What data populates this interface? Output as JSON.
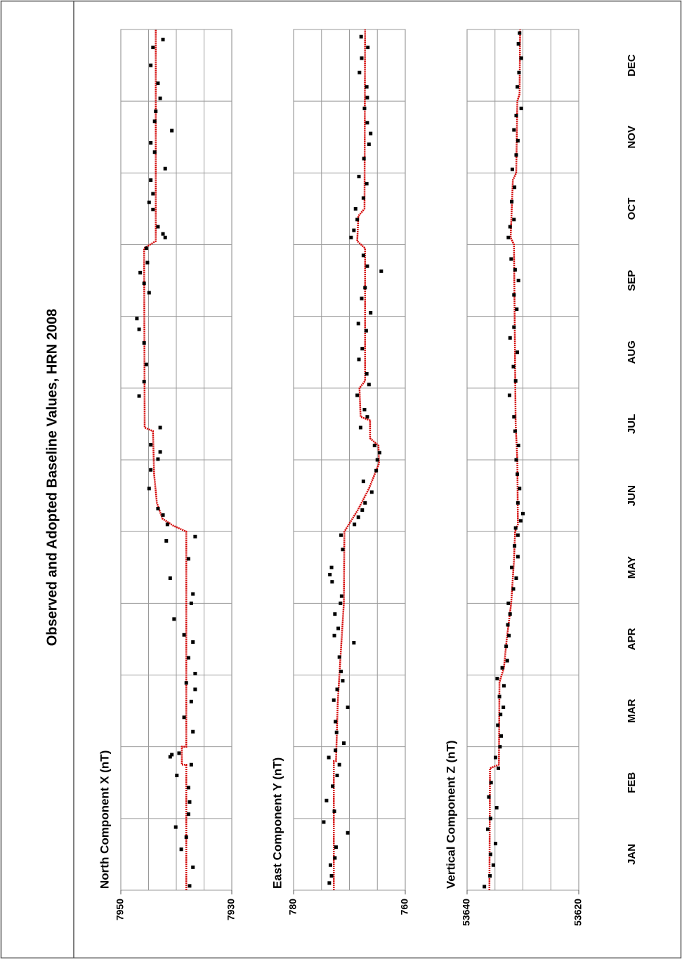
{
  "title": "Observed and Adopted Baseline Values, HRN 2008",
  "chart_data": [
    {
      "type": "scatter",
      "label": "North Component X (nT)",
      "xlim": [
        0,
        12
      ],
      "xgrid": [
        0,
        1,
        2,
        3,
        4,
        5,
        6,
        7,
        8,
        9,
        10,
        11,
        12
      ],
      "ylim": [
        7950,
        7930
      ],
      "yticks": [
        7950,
        7930
      ],
      "ygrid": [
        7945,
        7940,
        7935
      ],
      "series": [
        {
          "style": "line",
          "color": "#d40000",
          "x": [
            0,
            1.75,
            1.75,
            2.0,
            2.0,
            5.0,
            5.08,
            5.18,
            5.4,
            5.8,
            6.4,
            6.45,
            8.95,
            9.05,
            12
          ],
          "values": [
            7938.2,
            7938.2,
            7939.0,
            7939.0,
            7938.2,
            7938.2,
            7940.5,
            7942.5,
            7943.5,
            7944.0,
            7944.2,
            7945.7,
            7945.8,
            7943.7,
            7943.7
          ]
        },
        {
          "style": "points",
          "color": "#000000",
          "x": [
            0.06,
            0.32,
            0.57,
            0.74,
            0.88,
            1.06,
            1.23,
            1.43,
            1.6,
            1.75,
            1.86,
            1.89,
            1.91,
            2.21,
            2.41,
            2.63,
            2.8,
            2.89,
            3.02,
            3.24,
            3.46,
            3.56,
            3.78,
            4.0,
            4.13,
            4.35,
            4.62,
            4.87,
            4.93,
            5.1,
            5.23,
            5.32,
            5.6,
            5.86,
            6.01,
            6.11,
            6.21,
            6.45,
            6.89,
            7.09,
            7.33,
            7.63,
            7.82,
            7.97,
            8.33,
            8.46,
            8.61,
            8.75,
            8.95,
            9.1,
            9.15,
            9.25,
            9.49,
            9.59,
            9.71,
            9.9,
            10.06,
            10.29,
            10.42,
            10.59,
            10.72,
            10.86,
            11.04,
            11.25,
            11.5,
            11.75,
            11.86
          ],
          "values": [
            7937.6,
            7937.0,
            7939.1,
            7938.2,
            7940.1,
            7937.8,
            7937.6,
            7937.8,
            7939.9,
            7937.3,
            7941.1,
            7940.8,
            7939.5,
            7937.0,
            7938.6,
            7937.3,
            7936.6,
            7938.2,
            7936.6,
            7937.8,
            7937.0,
            7938.6,
            7940.4,
            7937.3,
            7937.0,
            7941.1,
            7937.8,
            7941.8,
            7936.6,
            7941.6,
            7942.4,
            7943.3,
            7944.9,
            7944.6,
            7943.3,
            7942.9,
            7944.6,
            7942.9,
            7946.7,
            7945.8,
            7945.4,
            7945.8,
            7946.7,
            7947.1,
            7944.9,
            7945.8,
            7946.5,
            7945.2,
            7945.4,
            7942.0,
            7942.4,
            7943.3,
            7944.2,
            7944.9,
            7944.2,
            7944.6,
            7942.0,
            7943.9,
            7944.6,
            7940.8,
            7943.9,
            7943.7,
            7942.9,
            7943.3,
            7944.6,
            7944.2,
            7942.4
          ]
        }
      ]
    },
    {
      "type": "scatter",
      "label": "East Component Y (nT)",
      "xlim": [
        0,
        12
      ],
      "xgrid": [
        0,
        1,
        2,
        3,
        4,
        5,
        6,
        7,
        8,
        9,
        10,
        11,
        12
      ],
      "ylim": [
        780,
        760
      ],
      "yticks": [
        780,
        760
      ],
      "ygrid": [
        775,
        770,
        765
      ],
      "series": [
        {
          "style": "line",
          "color": "#d40000",
          "x": [
            0,
            1.8,
            1.8,
            2.6,
            3.0,
            3.5,
            4.0,
            5.0,
            5.3,
            5.6,
            5.95,
            6.2,
            6.3,
            6.55,
            6.6,
            7.0,
            7.1,
            8.95,
            9.05,
            9.4,
            9.5,
            12
          ],
          "values": [
            772.8,
            772.8,
            772.4,
            772.1,
            771.8,
            771.4,
            771.0,
            770.9,
            768.5,
            766.5,
            764.7,
            764.8,
            766.3,
            766.3,
            768.0,
            768.2,
            767.2,
            767.2,
            768.6,
            768.4,
            767.3,
            767.2
          ]
        },
        {
          "style": "points",
          "color": "#000000",
          "x": [
            0.1,
            0.2,
            0.35,
            0.45,
            0.6,
            0.8,
            0.95,
            1.1,
            1.25,
            1.45,
            1.6,
            1.75,
            1.85,
            1.95,
            2.05,
            2.2,
            2.35,
            2.55,
            2.65,
            2.8,
            2.92,
            3.05,
            3.25,
            3.45,
            3.55,
            3.65,
            3.85,
            4.0,
            4.1,
            4.3,
            4.4,
            4.5,
            4.75,
            4.95,
            5.1,
            5.2,
            5.3,
            5.4,
            5.55,
            5.7,
            5.85,
            6.0,
            6.1,
            6.2,
            6.45,
            6.6,
            6.7,
            6.9,
            7.05,
            7.2,
            7.4,
            7.55,
            7.8,
            7.9,
            8.05,
            8.25,
            8.4,
            8.63,
            8.7,
            8.85,
            9.1,
            9.2,
            9.35,
            9.5,
            9.65,
            9.85,
            9.95,
            10.2,
            10.4,
            10.55,
            10.7,
            10.9,
            11.05,
            11.2,
            11.4,
            11.6,
            11.75,
            11.9
          ],
          "values": [
            773.6,
            773.2,
            773.4,
            772.6,
            772.4,
            770.3,
            774.6,
            772.7,
            774.1,
            773.0,
            772.2,
            771.8,
            773.7,
            772.5,
            771.0,
            772.3,
            772.5,
            770.3,
            772.8,
            772.2,
            771.2,
            771.5,
            771.8,
            769.2,
            772.7,
            772.0,
            772.6,
            771.6,
            771.4,
            773.1,
            773.5,
            773.2,
            771.2,
            771.5,
            769.1,
            768.4,
            767.7,
            767.2,
            766.0,
            767.5,
            765.2,
            765.0,
            764.6,
            765.5,
            768.0,
            766.8,
            767.3,
            768.6,
            766.5,
            766.9,
            768.3,
            767.7,
            767.0,
            768.4,
            766.2,
            767.8,
            767.2,
            764.3,
            766.8,
            767.5,
            769.7,
            769.2,
            768.6,
            768.9,
            767.5,
            766.9,
            768.3,
            767.4,
            766.5,
            766.2,
            766.8,
            767.3,
            766.8,
            766.9,
            768.2,
            767.8,
            766.7,
            767.9
          ]
        }
      ]
    },
    {
      "type": "scatter",
      "label": "Vertical Component Z (nT)",
      "xlim": [
        0,
        12
      ],
      "xgrid": [
        0,
        1,
        2,
        3,
        4,
        5,
        6,
        7,
        8,
        9,
        10,
        11,
        12
      ],
      "categories": [
        "JAN",
        "FEB",
        "MAR",
        "APR",
        "MAY",
        "JUN",
        "JUL",
        "AUG",
        "SEP",
        "OCT",
        "NOV",
        "DEC"
      ],
      "ylim": [
        53640,
        53620
      ],
      "yticks": [
        53640,
        53620
      ],
      "ygrid": [
        53635,
        53630,
        53625
      ],
      "series": [
        {
          "style": "line",
          "color": "#d40000",
          "x": [
            0,
            1.7,
            1.75,
            2.9,
            3.1,
            3.5,
            4.0,
            4.6,
            5.0,
            5.1,
            6.0,
            6.5,
            9.0,
            9.1,
            9.9,
            10.0,
            11.0,
            11.1,
            12
          ],
          "values": [
            53636.0,
            53635.9,
            53634.3,
            53634.2,
            53633.4,
            53632.9,
            53632.1,
            53631.6,
            53631.4,
            53630.9,
            53631.0,
            53631.3,
            53631.6,
            53632.2,
            53631.8,
            53631.2,
            53631.0,
            53630.6,
            53630.5
          ]
        },
        {
          "style": "points",
          "color": "#000000",
          "x": [
            0.05,
            0.2,
            0.35,
            0.5,
            0.65,
            0.85,
            1.0,
            1.15,
            1.3,
            1.5,
            1.7,
            1.85,
            2.0,
            2.15,
            2.3,
            2.45,
            2.55,
            2.7,
            2.85,
            2.95,
            3.1,
            3.2,
            3.4,
            3.55,
            3.7,
            3.85,
            4.0,
            4.2,
            4.35,
            4.5,
            4.65,
            4.8,
            4.95,
            5.05,
            5.15,
            5.25,
            5.4,
            5.6,
            5.8,
            6.0,
            6.2,
            6.4,
            6.6,
            6.9,
            7.1,
            7.3,
            7.5,
            7.7,
            7.85,
            8.1,
            8.3,
            8.5,
            8.65,
            8.8,
            9.1,
            9.25,
            9.35,
            9.6,
            9.8,
            10.05,
            10.25,
            10.45,
            10.6,
            10.8,
            10.9,
            11.2,
            11.4,
            11.6,
            11.8,
            11.95
          ],
          "values": [
            53636.9,
            53635.9,
            53635.3,
            53635.8,
            53634.9,
            53636.3,
            53635.8,
            53634.7,
            53636.1,
            53635.7,
            53634.4,
            53634.9,
            53634.1,
            53633.9,
            53634.5,
            53634.0,
            53633.5,
            53634.2,
            53633.4,
            53634.6,
            53633.7,
            53632.8,
            53633.0,
            53632.5,
            53632.7,
            53632.3,
            53632.6,
            53631.7,
            53631.2,
            53632.0,
            53630.9,
            53631.5,
            53630.9,
            53631.3,
            53630.4,
            53630.0,
            53630.9,
            53630.6,
            53631.0,
            53631.2,
            53630.8,
            53631.4,
            53631.6,
            53632.4,
            53631.3,
            53631.7,
            53631.0,
            53632.3,
            53631.6,
            53631.1,
            53631.6,
            53630.8,
            53631.4,
            53632.1,
            53632.6,
            53632.3,
            53631.6,
            53632.0,
            53631.5,
            53631.9,
            53631.2,
            53630.9,
            53631.6,
            53631.2,
            53630.3,
            53631.0,
            53630.7,
            53630.3,
            53630.8,
            53630.6
          ]
        }
      ]
    }
  ]
}
